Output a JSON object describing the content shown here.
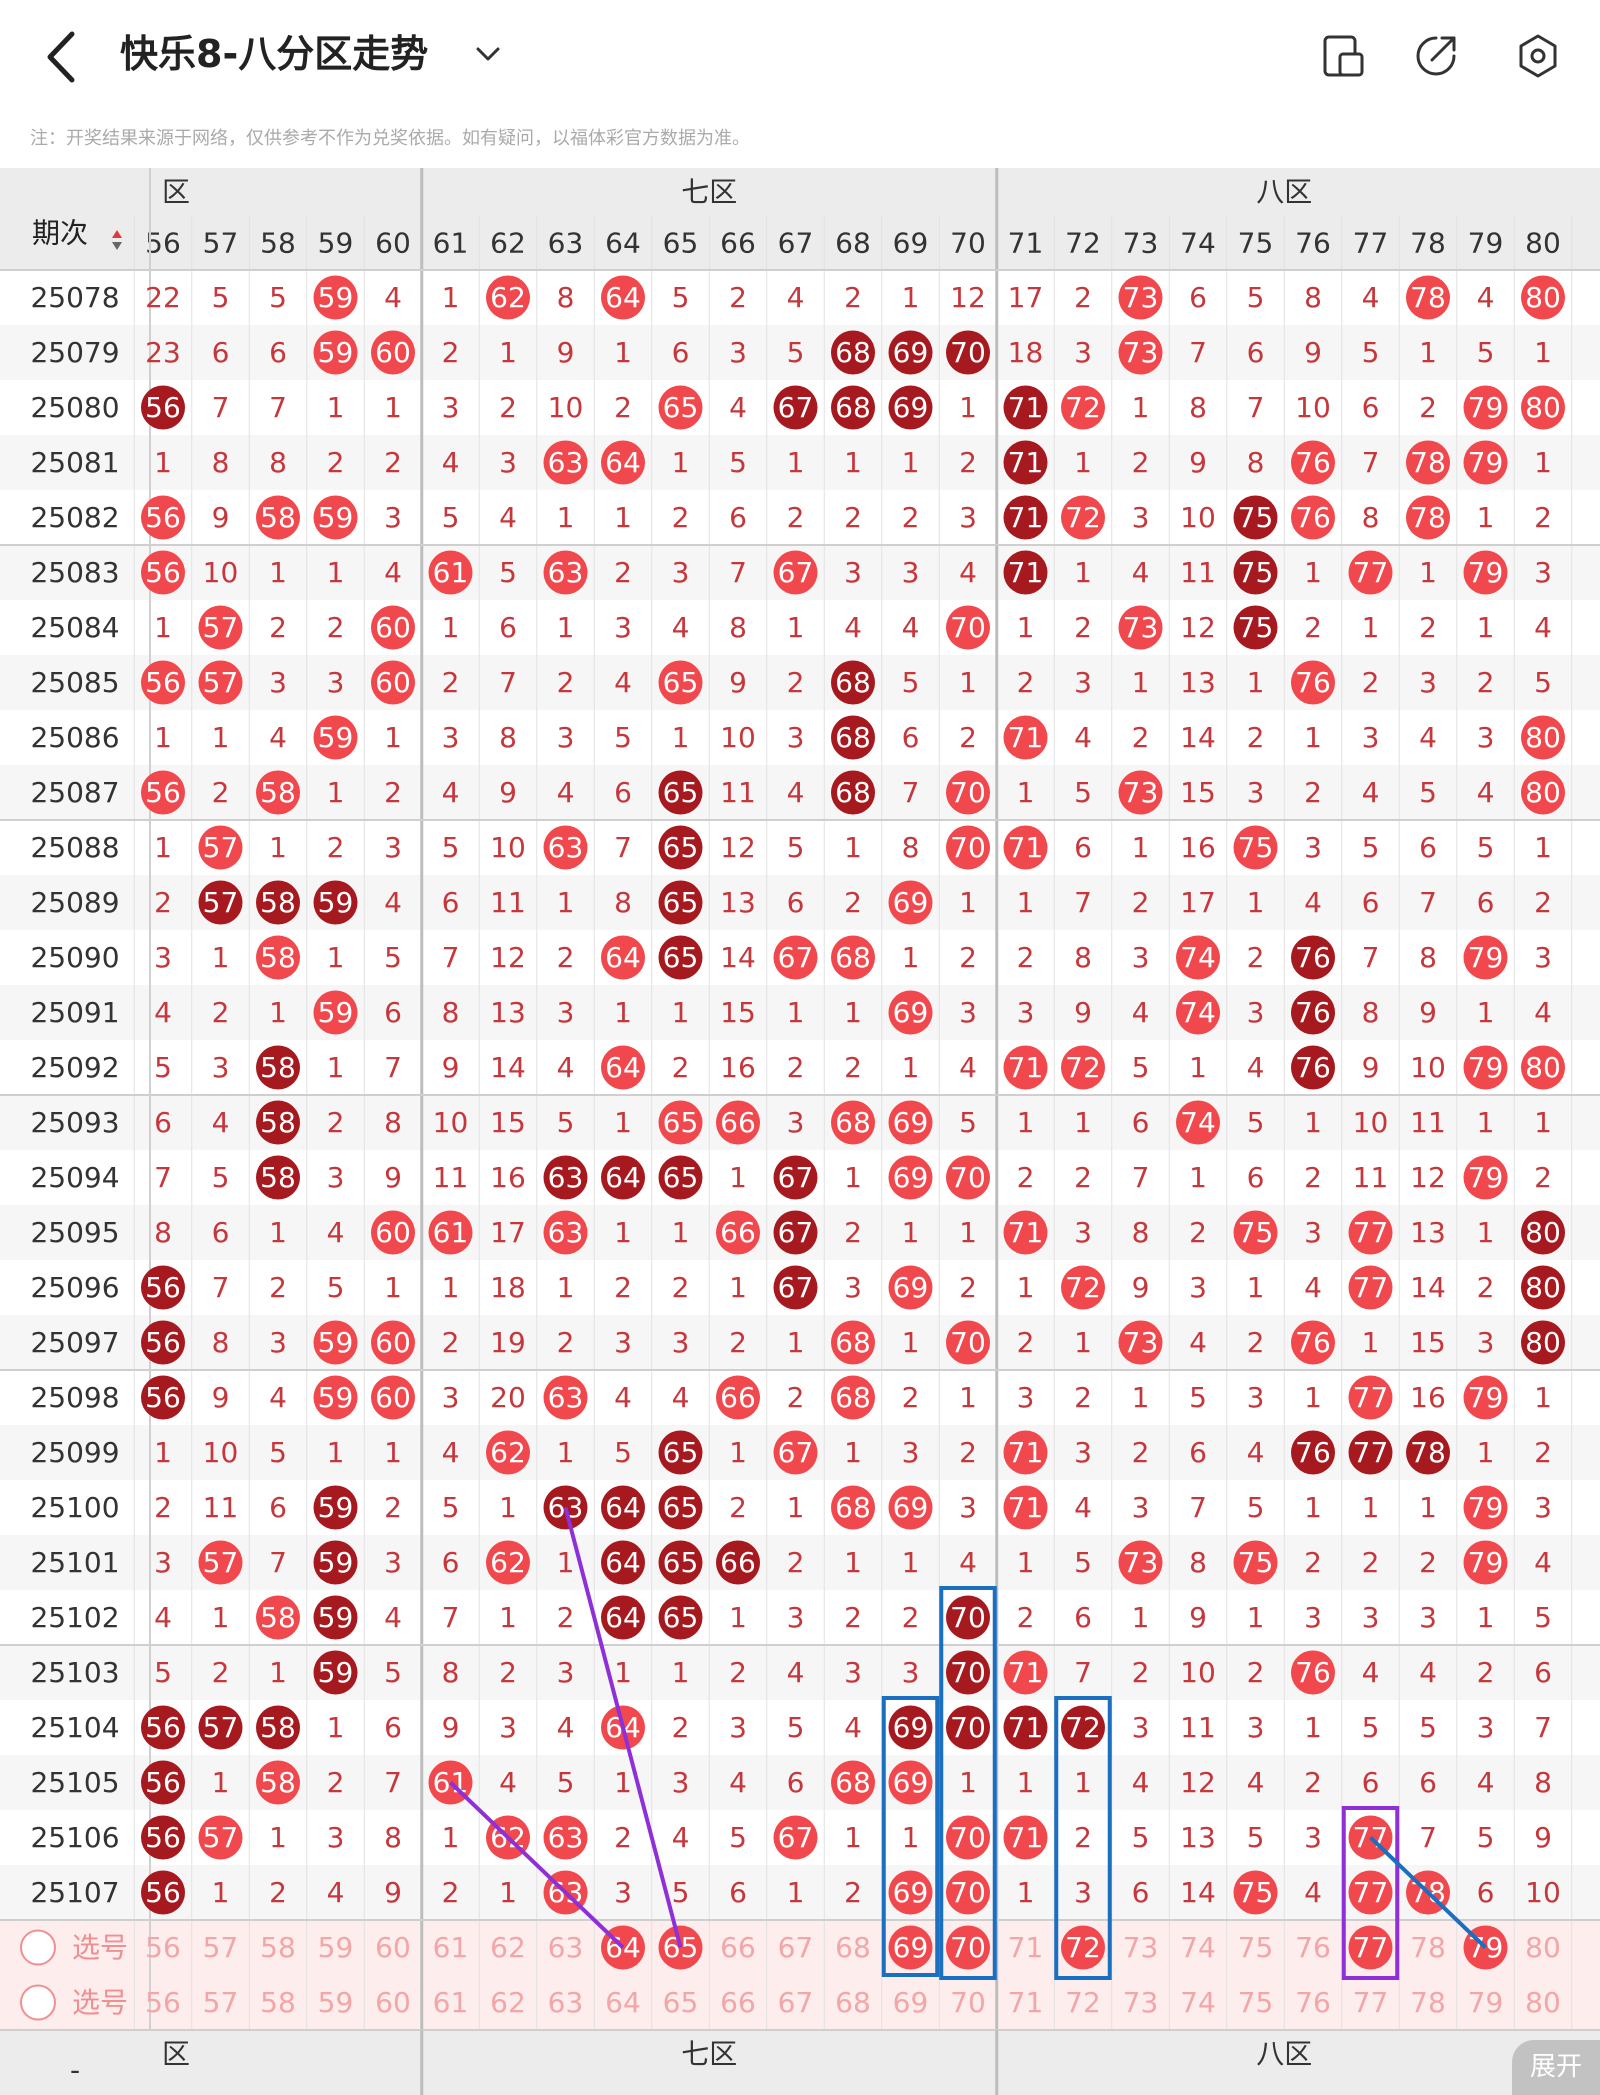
{
  "header": {
    "title": "快乐8-八分区走势",
    "back_icon": "chevron-left-icon",
    "dropdown_icon": "chevron-down-icon",
    "icons": [
      "layout-icon",
      "share-icon",
      "settings-icon"
    ]
  },
  "note": "注：开奖结果来源于网络，仅供参考不作为兑奖依据。如有疑问，以福体彩官方数据为准。",
  "table": {
    "period_header": "期次",
    "zones": [
      {
        "label": "六区",
        "partial": "六区"
      },
      {
        "label": "七区"
      },
      {
        "label": "八区"
      }
    ],
    "columns": [
      56,
      57,
      58,
      59,
      60,
      61,
      62,
      63,
      64,
      65,
      66,
      67,
      68,
      69,
      70,
      71,
      72,
      73,
      74,
      75,
      76,
      77,
      78,
      79,
      80
    ],
    "rows": [
      {
        "period": "25078",
        "values": [
          "22",
          "5",
          "5",
          "59",
          "4",
          "1",
          "62",
          "8",
          "64",
          "5",
          "2",
          "4",
          "2",
          "1",
          "12",
          "17",
          "2",
          "73",
          "6",
          "5",
          "8",
          "4",
          "78",
          "4",
          "80"
        ],
        "dark": []
      },
      {
        "period": "25079",
        "values": [
          "23",
          "6",
          "6",
          "59",
          "60",
          "2",
          "1",
          "9",
          "1",
          "6",
          "3",
          "5",
          "68",
          "69",
          "70",
          "18",
          "3",
          "73",
          "7",
          "6",
          "9",
          "5",
          "1",
          "5",
          "1"
        ],
        "dark": [
          "68",
          "69",
          "70"
        ]
      },
      {
        "period": "25080",
        "values": [
          "56",
          "7",
          "7",
          "1",
          "1",
          "3",
          "2",
          "10",
          "2",
          "65",
          "4",
          "67",
          "68",
          "69",
          "1",
          "71",
          "72",
          "1",
          "8",
          "7",
          "10",
          "6",
          "2",
          "79",
          "80"
        ],
        "dark": [
          "56",
          "67",
          "68",
          "69",
          "71"
        ]
      },
      {
        "period": "25081",
        "values": [
          "1",
          "8",
          "8",
          "2",
          "2",
          "4",
          "3",
          "63",
          "64",
          "1",
          "5",
          "1",
          "1",
          "1",
          "2",
          "71",
          "1",
          "2",
          "9",
          "8",
          "76",
          "7",
          "78",
          "79",
          "1"
        ],
        "dark": [
          "71"
        ]
      },
      {
        "period": "25082",
        "values": [
          "56",
          "9",
          "58",
          "59",
          "3",
          "5",
          "4",
          "1",
          "1",
          "2",
          "6",
          "2",
          "2",
          "2",
          "3",
          "71",
          "72",
          "3",
          "10",
          "75",
          "76",
          "8",
          "78",
          "1",
          "2"
        ],
        "dark": [
          "71",
          "75"
        ]
      },
      {
        "period": "25083",
        "values": [
          "56",
          "10",
          "1",
          "1",
          "4",
          "61",
          "5",
          "63",
          "2",
          "3",
          "7",
          "67",
          "3",
          "3",
          "4",
          "71",
          "1",
          "4",
          "11",
          "75",
          "1",
          "77",
          "1",
          "79",
          "3"
        ],
        "dark": [
          "71",
          "75"
        ]
      },
      {
        "period": "25084",
        "values": [
          "1",
          "57",
          "2",
          "2",
          "60",
          "1",
          "6",
          "1",
          "3",
          "4",
          "8",
          "1",
          "4",
          "4",
          "70",
          "1",
          "2",
          "73",
          "12",
          "75",
          "2",
          "1",
          "2",
          "1",
          "4"
        ],
        "dark": [
          "75"
        ]
      },
      {
        "period": "25085",
        "values": [
          "56",
          "57",
          "3",
          "3",
          "60",
          "2",
          "7",
          "2",
          "4",
          "65",
          "9",
          "2",
          "68",
          "5",
          "1",
          "2",
          "3",
          "1",
          "13",
          "1",
          "76",
          "2",
          "3",
          "2",
          "5"
        ],
        "dark": [
          "68"
        ]
      },
      {
        "period": "25086",
        "values": [
          "1",
          "1",
          "4",
          "59",
          "1",
          "3",
          "8",
          "3",
          "5",
          "1",
          "10",
          "3",
          "68",
          "6",
          "2",
          "71",
          "4",
          "2",
          "14",
          "2",
          "1",
          "3",
          "4",
          "3",
          "80"
        ],
        "dark": [
          "68"
        ]
      },
      {
        "period": "25087",
        "values": [
          "56",
          "2",
          "58",
          "1",
          "2",
          "4",
          "9",
          "4",
          "6",
          "65",
          "11",
          "4",
          "68",
          "7",
          "70",
          "1",
          "5",
          "73",
          "15",
          "3",
          "2",
          "4",
          "5",
          "4",
          "80"
        ],
        "dark": [
          "65",
          "68"
        ]
      },
      {
        "period": "25088",
        "values": [
          "1",
          "57",
          "1",
          "2",
          "3",
          "5",
          "10",
          "63",
          "7",
          "65",
          "12",
          "5",
          "1",
          "8",
          "70",
          "71",
          "6",
          "1",
          "16",
          "75",
          "3",
          "5",
          "6",
          "5",
          "1"
        ],
        "dark": [
          "65"
        ]
      },
      {
        "period": "25089",
        "values": [
          "2",
          "57",
          "58",
          "59",
          "4",
          "6",
          "11",
          "1",
          "8",
          "65",
          "13",
          "6",
          "2",
          "69",
          "1",
          "1",
          "7",
          "2",
          "17",
          "1",
          "4",
          "6",
          "7",
          "6",
          "2"
        ],
        "dark": [
          "57",
          "58",
          "59",
          "65"
        ]
      },
      {
        "period": "25090",
        "values": [
          "3",
          "1",
          "58",
          "1",
          "5",
          "7",
          "12",
          "2",
          "64",
          "65",
          "14",
          "67",
          "68",
          "1",
          "2",
          "2",
          "8",
          "3",
          "74",
          "2",
          "76",
          "7",
          "8",
          "79",
          "3"
        ],
        "dark": [
          "65",
          "76"
        ]
      },
      {
        "period": "25091",
        "values": [
          "4",
          "2",
          "1",
          "59",
          "6",
          "8",
          "13",
          "3",
          "1",
          "1",
          "15",
          "1",
          "1",
          "69",
          "3",
          "3",
          "9",
          "4",
          "74",
          "3",
          "76",
          "8",
          "9",
          "1",
          "4"
        ],
        "dark": [
          "76"
        ]
      },
      {
        "period": "25092",
        "values": [
          "5",
          "3",
          "58",
          "1",
          "7",
          "9",
          "14",
          "4",
          "64",
          "2",
          "16",
          "2",
          "2",
          "1",
          "4",
          "71",
          "72",
          "5",
          "1",
          "4",
          "76",
          "9",
          "10",
          "79",
          "80"
        ],
        "dark": [
          "58",
          "76"
        ]
      },
      {
        "period": "25093",
        "values": [
          "6",
          "4",
          "58",
          "2",
          "8",
          "10",
          "15",
          "5",
          "1",
          "65",
          "66",
          "3",
          "68",
          "69",
          "5",
          "1",
          "1",
          "6",
          "74",
          "5",
          "1",
          "10",
          "11",
          "1",
          "1"
        ],
        "dark": [
          "58"
        ]
      },
      {
        "period": "25094",
        "values": [
          "7",
          "5",
          "58",
          "3",
          "9",
          "11",
          "16",
          "63",
          "64",
          "65",
          "1",
          "67",
          "1",
          "69",
          "70",
          "2",
          "2",
          "7",
          "1",
          "6",
          "2",
          "11",
          "12",
          "79",
          "2"
        ],
        "dark": [
          "58",
          "63",
          "64",
          "65",
          "67"
        ]
      },
      {
        "period": "25095",
        "values": [
          "8",
          "6",
          "1",
          "4",
          "60",
          "61",
          "17",
          "63",
          "1",
          "1",
          "66",
          "67",
          "2",
          "1",
          "1",
          "71",
          "3",
          "8",
          "2",
          "75",
          "3",
          "77",
          "13",
          "1",
          "80"
        ],
        "dark": [
          "67",
          "80"
        ]
      },
      {
        "period": "25096",
        "values": [
          "56",
          "7",
          "2",
          "5",
          "1",
          "1",
          "18",
          "1",
          "2",
          "2",
          "1",
          "67",
          "3",
          "69",
          "2",
          "1",
          "72",
          "9",
          "3",
          "1",
          "4",
          "77",
          "14",
          "2",
          "80"
        ],
        "dark": [
          "56",
          "67",
          "80"
        ]
      },
      {
        "period": "25097",
        "values": [
          "56",
          "8",
          "3",
          "59",
          "60",
          "2",
          "19",
          "2",
          "3",
          "3",
          "2",
          "1",
          "68",
          "1",
          "70",
          "2",
          "1",
          "73",
          "4",
          "2",
          "76",
          "1",
          "15",
          "3",
          "80"
        ],
        "dark": [
          "56",
          "80"
        ]
      },
      {
        "period": "25098",
        "values": [
          "56",
          "9",
          "4",
          "59",
          "60",
          "3",
          "20",
          "63",
          "4",
          "4",
          "66",
          "2",
          "68",
          "2",
          "1",
          "3",
          "2",
          "1",
          "5",
          "3",
          "1",
          "77",
          "16",
          "79",
          "1"
        ],
        "dark": [
          "56"
        ]
      },
      {
        "period": "25099",
        "values": [
          "1",
          "10",
          "5",
          "1",
          "1",
          "4",
          "62",
          "1",
          "5",
          "65",
          "1",
          "67",
          "1",
          "3",
          "2",
          "71",
          "3",
          "2",
          "6",
          "4",
          "76",
          "77",
          "78",
          "1",
          "2"
        ],
        "dark": [
          "65",
          "76",
          "77",
          "78"
        ]
      },
      {
        "period": "25100",
        "values": [
          "2",
          "11",
          "6",
          "59",
          "2",
          "5",
          "1",
          "63",
          "64",
          "65",
          "2",
          "1",
          "68",
          "69",
          "3",
          "71",
          "4",
          "3",
          "7",
          "5",
          "1",
          "1",
          "1",
          "79",
          "3"
        ],
        "dark": [
          "59",
          "63",
          "64",
          "65"
        ]
      },
      {
        "period": "25101",
        "values": [
          "3",
          "57",
          "7",
          "59",
          "3",
          "6",
          "62",
          "1",
          "64",
          "65",
          "66",
          "2",
          "1",
          "1",
          "4",
          "1",
          "5",
          "73",
          "8",
          "75",
          "2",
          "2",
          "2",
          "79",
          "4"
        ],
        "dark": [
          "59",
          "64",
          "65",
          "66"
        ]
      },
      {
        "period": "25102",
        "values": [
          "4",
          "1",
          "58",
          "59",
          "4",
          "7",
          "1",
          "2",
          "64",
          "65",
          "1",
          "3",
          "2",
          "2",
          "70",
          "2",
          "6",
          "1",
          "9",
          "1",
          "3",
          "3",
          "3",
          "1",
          "5"
        ],
        "dark": [
          "59",
          "64",
          "65",
          "70"
        ]
      },
      {
        "period": "25103",
        "values": [
          "5",
          "2",
          "1",
          "59",
          "5",
          "8",
          "2",
          "3",
          "1",
          "1",
          "2",
          "4",
          "3",
          "3",
          "70",
          "71",
          "7",
          "2",
          "10",
          "2",
          "76",
          "4",
          "4",
          "2",
          "6"
        ],
        "dark": [
          "59",
          "70"
        ]
      },
      {
        "period": "25104",
        "values": [
          "56",
          "57",
          "58",
          "1",
          "6",
          "9",
          "3",
          "4",
          "64",
          "2",
          "3",
          "5",
          "4",
          "69",
          "70",
          "71",
          "72",
          "3",
          "11",
          "3",
          "1",
          "5",
          "5",
          "3",
          "7"
        ],
        "dark": [
          "56",
          "57",
          "58",
          "69",
          "70",
          "71",
          "72"
        ]
      },
      {
        "period": "25105",
        "values": [
          "56",
          "1",
          "58",
          "2",
          "7",
          "61",
          "4",
          "5",
          "1",
          "3",
          "4",
          "6",
          "68",
          "69",
          "1",
          "1",
          "1",
          "4",
          "12",
          "4",
          "2",
          "6",
          "6",
          "4",
          "8"
        ],
        "dark": [
          "56"
        ]
      },
      {
        "period": "25106",
        "values": [
          "56",
          "57",
          "1",
          "3",
          "8",
          "1",
          "62",
          "63",
          "2",
          "4",
          "5",
          "67",
          "1",
          "1",
          "70",
          "71",
          "2",
          "5",
          "13",
          "5",
          "3",
          "77",
          "7",
          "5",
          "9"
        ],
        "dark": [
          "56"
        ]
      },
      {
        "period": "25107",
        "values": [
          "56",
          "1",
          "2",
          "4",
          "9",
          "2",
          "1",
          "63",
          "3",
          "5",
          "6",
          "1",
          "2",
          "69",
          "70",
          "1",
          "3",
          "6",
          "14",
          "75",
          "4",
          "77",
          "78",
          "6",
          "10"
        ],
        "dark": [
          "56"
        ]
      }
    ],
    "select_rows": [
      {
        "label": "选号",
        "selected": [
          "64",
          "65",
          "69",
          "70",
          "72",
          "77",
          "79"
        ]
      },
      {
        "label": "选号",
        "selected": []
      }
    ]
  },
  "bottom_header": {
    "period_header": "-"
  },
  "expand_label": "展开",
  "colors": {
    "light_ball": "#f0484d",
    "dark_ball": "#a5191f",
    "miss_text": "#c6373c",
    "select_text": "#f3a6a8",
    "select_bg": "#fdeded",
    "zone_bg": "#ececec",
    "highlight_box": "#1a6fc0",
    "purple_box": "#8e2fd8",
    "purple_line": "#8e2fd8",
    "blue_line": "#1a6fc0"
  }
}
